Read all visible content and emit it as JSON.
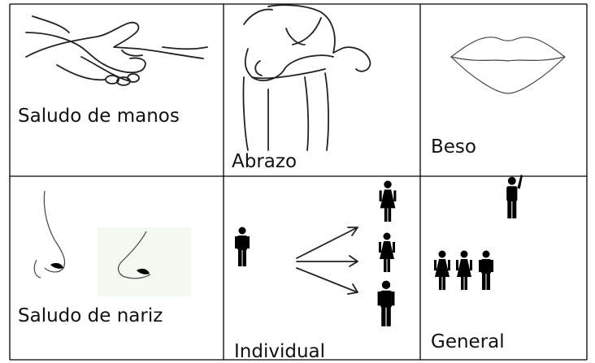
{
  "table": {
    "rows": [
      [
        "Saludo de manos",
        "Abrazo",
        "Beso"
      ],
      [
        "Saludo de nariz",
        "Individual",
        "General"
      ]
    ]
  }
}
